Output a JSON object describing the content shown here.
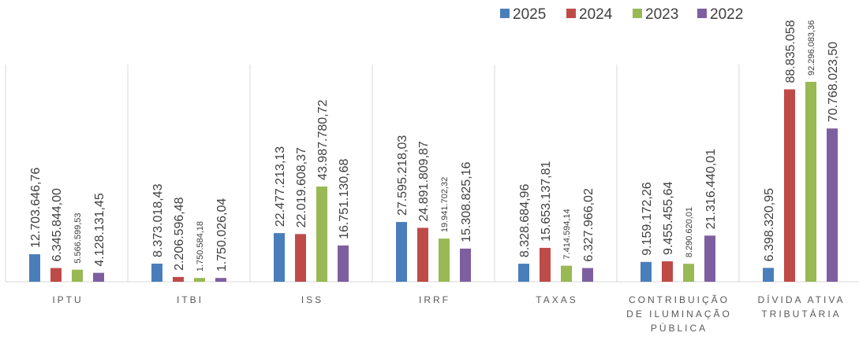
{
  "chart_data": {
    "type": "bar",
    "categories": [
      "IPTU",
      "ITBI",
      "ISS",
      "IRRF",
      "TAXAS",
      "CONTRIBUIÇÃO DE ILUMINAÇÃO PÚBLICA",
      "DÍVIDA ATIVA TRIBUTÁRIA"
    ],
    "series": [
      {
        "name": "2025",
        "color": "#4a7ebb",
        "values": [
          12703646.76,
          8373018.43,
          22477213.13,
          27595218.03,
          8328684.96,
          9159172.26,
          6398320.95
        ],
        "value_labels": [
          "12.703.646,76",
          "8.373.018,43",
          "22.477.213,13",
          "27.595.218,03",
          "8.328.684,96",
          "9.159.172,26",
          "6.398.320,95"
        ]
      },
      {
        "name": "2024",
        "color": "#be4b48",
        "values": [
          6345844.0,
          2206596.48,
          22019608.37,
          24891809.87,
          15653137.81,
          9455455.64,
          88835058
        ],
        "value_labels": [
          "6.345.844,00",
          "2.206.596,48",
          "22.019.608,37",
          "24.891.809,87",
          "15.653.137,81",
          "9.455.455,64",
          "88.835.058"
        ]
      },
      {
        "name": "2023",
        "color": "#98b954",
        "values": [
          5566599.53,
          1750584.18,
          43987780.72,
          19941702.32,
          7414594.14,
          8290620.01,
          92296083.36
        ],
        "value_labels": [
          "5.566.599,53",
          "1.750.584,18",
          "43.987.780,72",
          "19.941.702,32",
          "7.414.594,14",
          "8.290.620,01",
          "92.296.083,36"
        ]
      },
      {
        "name": "2022",
        "color": "#7d5fa0",
        "values": [
          4128131.45,
          1750026.04,
          16751130.68,
          15308825.16,
          6327966.02,
          21316440.01,
          70768023.5
        ],
        "value_labels": [
          "4.128.131,45",
          "1.750.026,04",
          "16.751.130,68",
          "15.308.825,16",
          "6.327.966,02",
          "21.316.440,01",
          "70.768.023,50"
        ]
      }
    ]
  }
}
